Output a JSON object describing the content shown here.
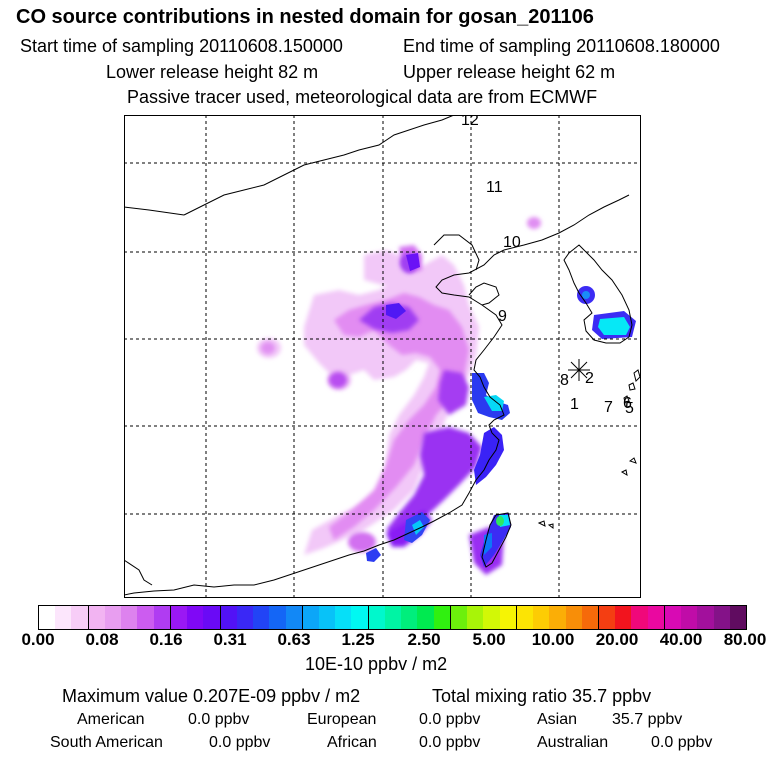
{
  "title": "CO  source contributions in nested domain for gosan_201106",
  "sampling": {
    "start": "Start time of sampling 20110608.150000",
    "end": "End time of sampling 20110608.180000"
  },
  "release": {
    "lower": "Lower release height   82 m",
    "upper": "Upper release height   62 m"
  },
  "info": "Passive tracer used, meteorological data are from ECMWF",
  "trajectory_labels": [
    "12",
    "11",
    "10",
    "9",
    "8",
    "2",
    "1",
    "7",
    "6",
    "5"
  ],
  "receptor_symbol": "*",
  "colorbar": {
    "ticks": [
      "0.00",
      "0.08",
      "0.16",
      "0.31",
      "0.63",
      "1.25",
      "2.50",
      "5.00",
      "10.00",
      "20.00",
      "40.00",
      "80.00"
    ],
    "units": "10E-10 ppbv / m2",
    "colors": [
      "#ffffff",
      "#fce6fc",
      "#f7cdf7",
      "#f2b4f2",
      "#e89ef0",
      "#dd82ee",
      "#cc5cf0",
      "#b03cf2",
      "#9a18f4",
      "#8008f6",
      "#6a0af6",
      "#5212f6",
      "#3a28f6",
      "#2244f6",
      "#1466f6",
      "#1288f6",
      "#0ca6f8",
      "#08c2f8",
      "#06dff8",
      "#00f8f2",
      "#00f8cc",
      "#00f4a4",
      "#00ee7c",
      "#00ea50",
      "#30f010",
      "#6cf00c",
      "#a8f408",
      "#d2f806",
      "#f6f404",
      "#fce404",
      "#fdcc04",
      "#fbae06",
      "#f88e08",
      "#f66a0a",
      "#f43e12",
      "#f2141e",
      "#f0087a",
      "#ea08a0",
      "#d80ab4",
      "#c00ca8",
      "#a2109c",
      "#841288",
      "#600c60"
    ]
  },
  "stats": {
    "maximum": "Maximum value  0.207E-09 ppbv / m2",
    "total": "Total mixing ratio       35.7 ppbv",
    "american_label": "American",
    "american_value": "0.0 ppbv",
    "european_label": "European",
    "european_value": "0.0 ppbv",
    "asian_label": "Asian",
    "asian_value": "35.7 ppbv",
    "south_american_label": "South American",
    "south_american_value": "0.0 ppbv",
    "african_label": "African",
    "african_value": "0.0 ppbv",
    "australian_label": "Australian",
    "australian_value": "0.0 ppbv"
  }
}
